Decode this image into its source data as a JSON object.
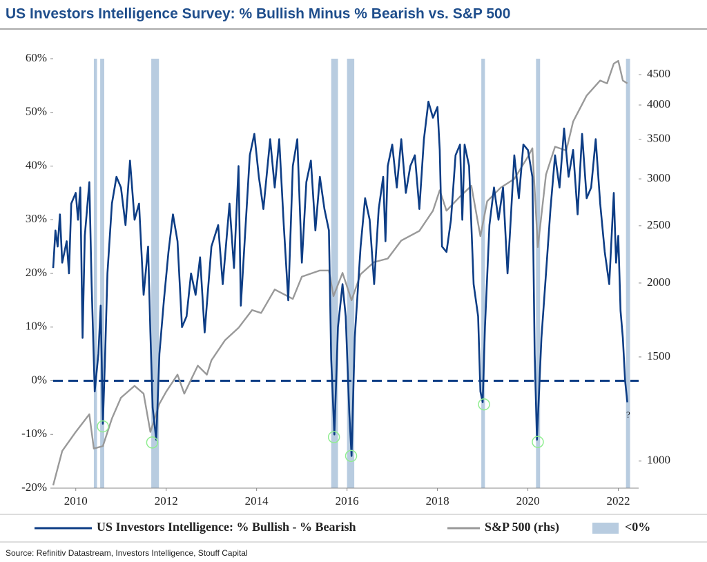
{
  "chart_data": {
    "type": "line",
    "title": "US Investors Intelligence Survey: % Bullish Minus % Bearish vs. S&P 500",
    "source": "Source: Refinitiv Datastream, Investors Intelligence, Stouff Capital",
    "xlim": [
      2009.5,
      2022.45
    ],
    "xticks": [
      2010,
      2012,
      2014,
      2016,
      2018,
      2020,
      2022
    ],
    "ylim": [
      -20,
      60
    ],
    "yticks": [
      {
        "value": -20,
        "label": "-20%"
      },
      {
        "value": -10,
        "label": "-10%"
      },
      {
        "value": 0,
        "label": "0%"
      },
      {
        "value": 10,
        "label": "10%"
      },
      {
        "value": 20,
        "label": "20%"
      },
      {
        "value": 30,
        "label": "30%"
      },
      {
        "value": 40,
        "label": "40%"
      },
      {
        "value": 50,
        "label": "50%"
      },
      {
        "value": 60,
        "label": "60%"
      }
    ],
    "y2lim": [
      900,
      4790
    ],
    "y2_log": true,
    "y2ticks": [
      1000,
      1500,
      2000,
      2500,
      3000,
      3500,
      4000,
      4500
    ],
    "reference_line": {
      "value": 0,
      "color": "#0d3d85",
      "dashed": true
    },
    "shaded": {
      "name": "<0%",
      "color": "#b8cce0",
      "ranges": [
        [
          2010.4,
          2010.47
        ],
        [
          2010.54,
          2010.63
        ],
        [
          2011.67,
          2011.84
        ],
        [
          2015.65,
          2015.8
        ],
        [
          2016.0,
          2016.16
        ],
        [
          2018.97,
          2019.05
        ],
        [
          2020.18,
          2020.27
        ],
        [
          2022.17,
          2022.26
        ]
      ]
    },
    "lows": {
      "color": "#90ee90",
      "x": [
        2010.6,
        2011.69,
        2015.71,
        2016.09,
        2019.03,
        2020.22
      ],
      "values": [
        -8.5,
        -11.5,
        -10.5,
        -14,
        -4.4,
        -11.4
      ]
    },
    "annotations": [
      {
        "text": "?",
        "x": 2022.22,
        "y": -6.5
      }
    ],
    "series": [
      {
        "name": "US Investors Intelligence: % Bullish - % Bearish",
        "color": "#0d3d85",
        "x": [
          2009.5,
          2009.55,
          2009.6,
          2009.65,
          2009.7,
          2009.8,
          2009.85,
          2009.9,
          2010.0,
          2010.05,
          2010.1,
          2010.15,
          2010.2,
          2010.25,
          2010.3,
          2010.35,
          2010.42,
          2010.5,
          2010.55,
          2010.6,
          2010.65,
          2010.7,
          2010.8,
          2010.9,
          2011.0,
          2011.1,
          2011.2,
          2011.3,
          2011.4,
          2011.5,
          2011.6,
          2011.65,
          2011.7,
          2011.78,
          2011.85,
          2011.95,
          2012.05,
          2012.15,
          2012.25,
          2012.35,
          2012.45,
          2012.55,
          2012.65,
          2012.75,
          2012.85,
          2013.0,
          2013.15,
          2013.25,
          2013.4,
          2013.5,
          2013.6,
          2013.65,
          2013.75,
          2013.85,
          2013.95,
          2014.05,
          2014.15,
          2014.3,
          2014.4,
          2014.5,
          2014.6,
          2014.7,
          2014.8,
          2014.9,
          2015.0,
          2015.1,
          2015.2,
          2015.3,
          2015.4,
          2015.5,
          2015.6,
          2015.65,
          2015.72,
          2015.8,
          2015.9,
          2015.97,
          2016.05,
          2016.1,
          2016.17,
          2016.3,
          2016.4,
          2016.5,
          2016.6,
          2016.7,
          2016.8,
          2016.85,
          2016.9,
          2017.0,
          2017.1,
          2017.2,
          2017.3,
          2017.4,
          2017.5,
          2017.6,
          2017.7,
          2017.8,
          2017.9,
          2018.0,
          2018.05,
          2018.1,
          2018.2,
          2018.3,
          2018.4,
          2018.5,
          2018.55,
          2018.6,
          2018.7,
          2018.8,
          2018.9,
          2018.95,
          2019.0,
          2019.05,
          2019.15,
          2019.25,
          2019.35,
          2019.45,
          2019.55,
          2019.6,
          2019.7,
          2019.8,
          2019.9,
          2020.0,
          2020.1,
          2020.15,
          2020.2,
          2020.3,
          2020.4,
          2020.5,
          2020.6,
          2020.7,
          2020.8,
          2020.9,
          2021.0,
          2021.1,
          2021.2,
          2021.3,
          2021.4,
          2021.5,
          2021.6,
          2021.7,
          2021.8,
          2021.9,
          2021.95,
          2022.0,
          2022.05,
          2022.1,
          2022.15,
          2022.2
        ],
        "values": [
          21,
          28,
          25,
          31,
          22,
          26,
          20,
          33,
          35,
          30,
          36,
          8,
          27,
          32,
          37,
          18,
          -2,
          5,
          14,
          -8,
          5,
          20,
          33,
          38,
          36,
          29,
          41,
          30,
          33,
          16,
          25,
          9,
          -5,
          -11,
          5,
          15,
          24,
          31,
          26,
          10,
          12,
          20,
          16,
          23,
          9,
          25,
          29,
          18,
          33,
          21,
          40,
          14,
          28,
          42,
          46,
          38,
          32,
          45,
          36,
          45,
          29,
          15,
          40,
          45,
          22,
          37,
          41,
          28,
          38,
          32,
          28,
          4,
          -10,
          10,
          18,
          12,
          -6,
          -14,
          8,
          25,
          34,
          30,
          18,
          32,
          38,
          26,
          40,
          44,
          36,
          45,
          35,
          40,
          42,
          32,
          45,
          52,
          49,
          51,
          43,
          25,
          24,
          30,
          42,
          44,
          30,
          44,
          40,
          18,
          12,
          -2,
          -4,
          10,
          29,
          36,
          30,
          36,
          20,
          27,
          42,
          34,
          44,
          43,
          38,
          5,
          -11,
          8,
          20,
          32,
          42,
          36,
          47,
          38,
          43,
          31,
          46,
          34,
          36,
          45,
          33,
          24,
          18,
          35,
          22,
          27,
          13,
          8,
          0,
          -4
        ]
      },
      {
        "name": "S&P 500 (rhs)",
        "color": "#999999",
        "axis": "y2",
        "x": [
          2009.5,
          2009.7,
          2010.0,
          2010.3,
          2010.4,
          2010.6,
          2010.8,
          2011.0,
          2011.3,
          2011.5,
          2011.65,
          2011.85,
          2012.0,
          2012.25,
          2012.4,
          2012.7,
          2012.9,
          2013.0,
          2013.3,
          2013.6,
          2013.9,
          2014.1,
          2014.4,
          2014.8,
          2015.0,
          2015.4,
          2015.6,
          2015.7,
          2015.9,
          2016.1,
          2016.3,
          2016.6,
          2016.9,
          2017.2,
          2017.6,
          2017.9,
          2018.05,
          2018.2,
          2018.5,
          2018.75,
          2018.95,
          2019.1,
          2019.4,
          2019.7,
          2020.0,
          2020.1,
          2020.22,
          2020.4,
          2020.6,
          2020.85,
          2021.0,
          2021.3,
          2021.6,
          2021.75,
          2021.9,
          2022.0,
          2022.1,
          2022.2
        ],
        "values": [
          910,
          1040,
          1120,
          1200,
          1050,
          1060,
          1180,
          1280,
          1340,
          1300,
          1120,
          1250,
          1310,
          1400,
          1300,
          1450,
          1400,
          1480,
          1600,
          1680,
          1800,
          1780,
          1950,
          1880,
          2050,
          2100,
          2100,
          1900,
          2080,
          1870,
          2070,
          2170,
          2200,
          2360,
          2450,
          2650,
          2870,
          2650,
          2800,
          2920,
          2400,
          2750,
          2900,
          3000,
          3270,
          3380,
          2300,
          3050,
          3400,
          3350,
          3750,
          4150,
          4400,
          4350,
          4700,
          4750,
          4400,
          4350
        ]
      }
    ]
  }
}
